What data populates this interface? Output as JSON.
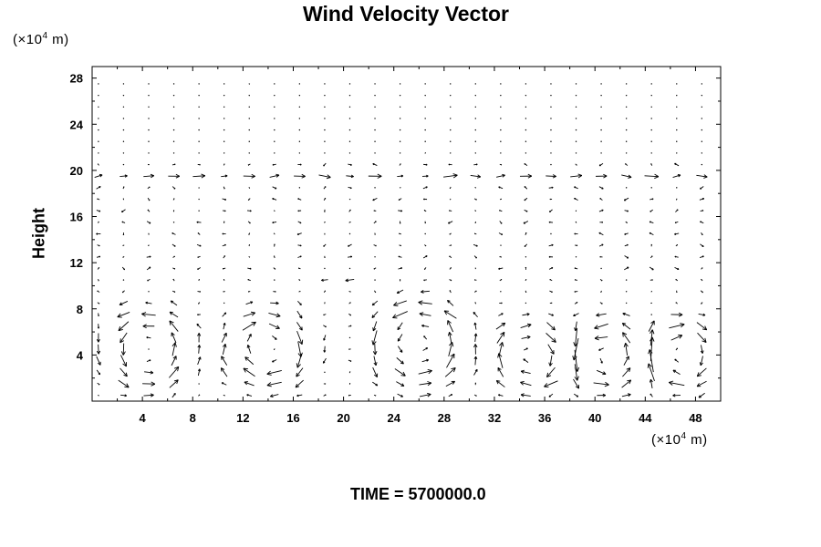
{
  "chart_data": {
    "type": "vector-field",
    "title": "Wind Velocity Vector",
    "ylabel": "Height",
    "x_unit": {
      "prefix": "(×10",
      "exp": "4",
      "suffix": " m)"
    },
    "y_unit": {
      "prefix": "(×10",
      "exp": "4",
      "suffix": " m)"
    },
    "time_label": "TIME = 5700000.0",
    "xlim": [
      0,
      50
    ],
    "ylim": [
      0,
      29
    ],
    "x_ticks": [
      4,
      8,
      12,
      16,
      20,
      24,
      28,
      32,
      36,
      40,
      44,
      48
    ],
    "y_ticks": [
      4,
      8,
      12,
      16,
      20,
      24,
      28
    ],
    "grid": false,
    "vectors": {
      "x_start": 0.5,
      "x_step": 2.0,
      "x_count": 25,
      "y_start": 0.5,
      "y_step": 1.0,
      "y_count": 28,
      "features": [
        {
          "kind": "jet",
          "y": 19.2,
          "u": 1.0
        },
        {
          "kind": "jet",
          "y": 10.2,
          "u": -0.9,
          "x_range": [
            18,
            22
          ]
        },
        {
          "kind": "cell",
          "cx": 4.5,
          "cy": 4.5,
          "r": 4.5,
          "sense": 1
        },
        {
          "kind": "cell",
          "cx": 14,
          "cy": 4.5,
          "r": 4.5,
          "sense": -1
        },
        {
          "kind": "cell",
          "cx": 26,
          "cy": 5,
          "r": 5,
          "sense": 1
        },
        {
          "kind": "cell",
          "cx": 35,
          "cy": 4,
          "r": 4,
          "sense": -1
        },
        {
          "kind": "cell",
          "cx": 41,
          "cy": 4,
          "r": 4,
          "sense": 1
        },
        {
          "kind": "cell",
          "cx": 47,
          "cy": 4,
          "r": 4,
          "sense": -1
        }
      ]
    }
  }
}
